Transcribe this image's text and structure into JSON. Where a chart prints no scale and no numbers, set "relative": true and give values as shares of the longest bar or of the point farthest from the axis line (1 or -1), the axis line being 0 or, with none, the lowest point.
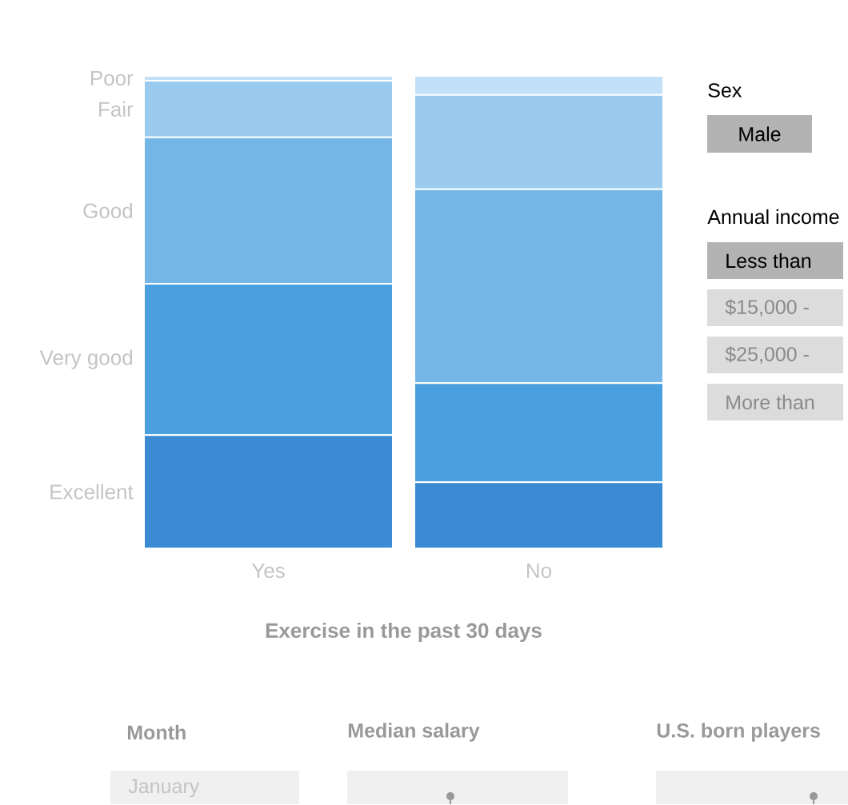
{
  "chart_data": {
    "type": "bar",
    "stacked": true,
    "relative": true,
    "xlabel": "Exercise in the past 30 days",
    "categories": [
      "Yes",
      "No"
    ],
    "series": [
      {
        "name": "Excellent",
        "color": "#3a8bd4",
        "values": [
          0.24,
          0.14
        ]
      },
      {
        "name": "Very good",
        "color": "#4aa0de",
        "values": [
          0.32,
          0.21
        ]
      },
      {
        "name": "Good",
        "color": "#74b6e6",
        "values": [
          0.31,
          0.41
        ]
      },
      {
        "name": "Fair",
        "color": "#9acbee",
        "values": [
          0.12,
          0.2
        ]
      },
      {
        "name": "Poor",
        "color": "#c2e1f8",
        "values": [
          0.01,
          0.04
        ]
      }
    ],
    "annotations": [
      "Sex",
      "Male",
      "Annual income",
      "Less than",
      "$15,000 -",
      "$25,000 -",
      "More than",
      "Month",
      "Median salary",
      "U.S. born players",
      "January"
    ]
  }
}
